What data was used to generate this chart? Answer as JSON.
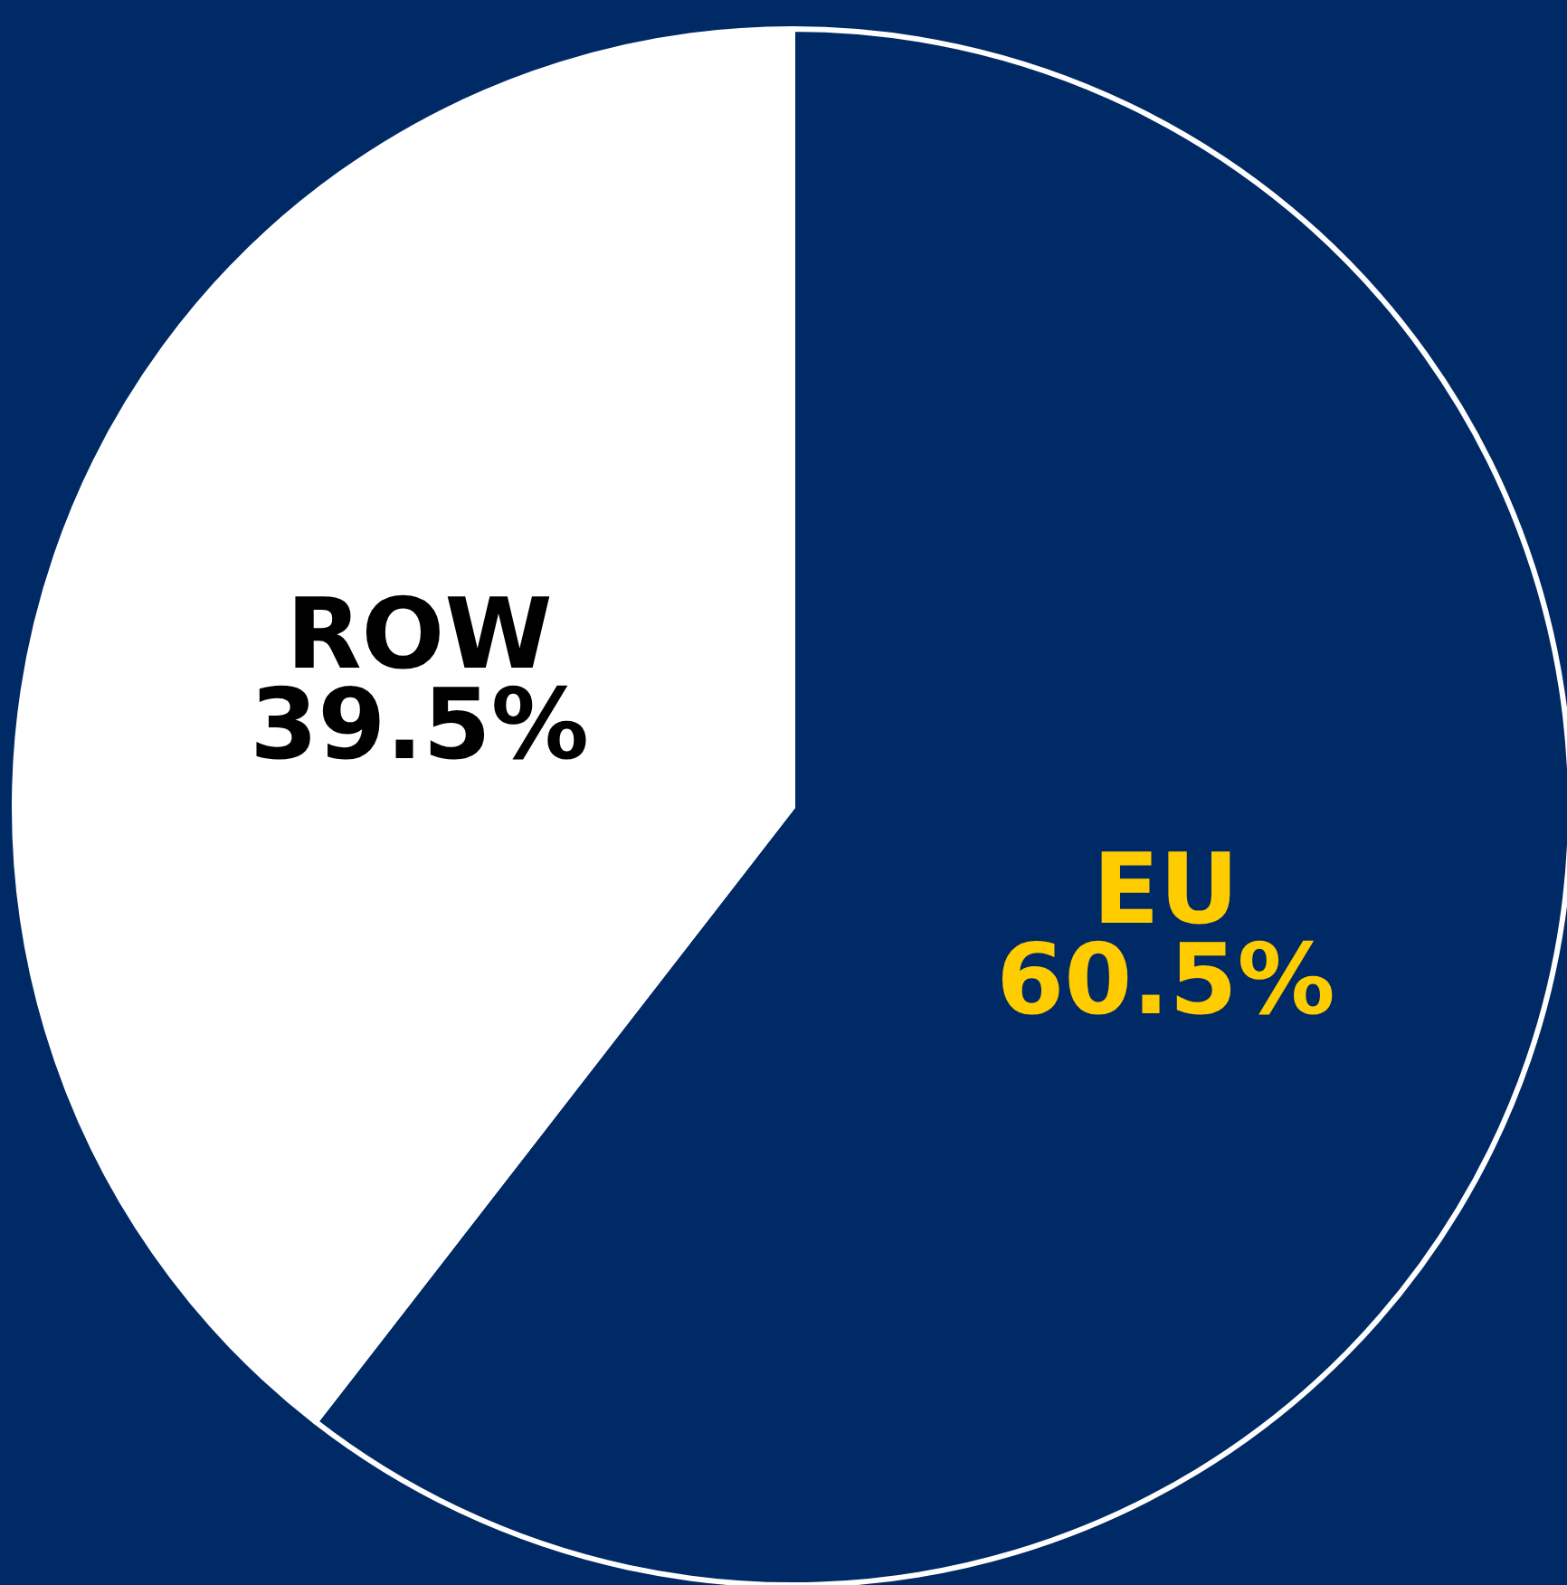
{
  "chart_data": {
    "type": "pie",
    "categories": [
      "EU",
      "ROW"
    ],
    "values": [
      60.5,
      39.5
    ],
    "colors": [
      "#002a66",
      "#ffffff"
    ],
    "value_labels": [
      "60.5%",
      "39.5%"
    ]
  }
}
